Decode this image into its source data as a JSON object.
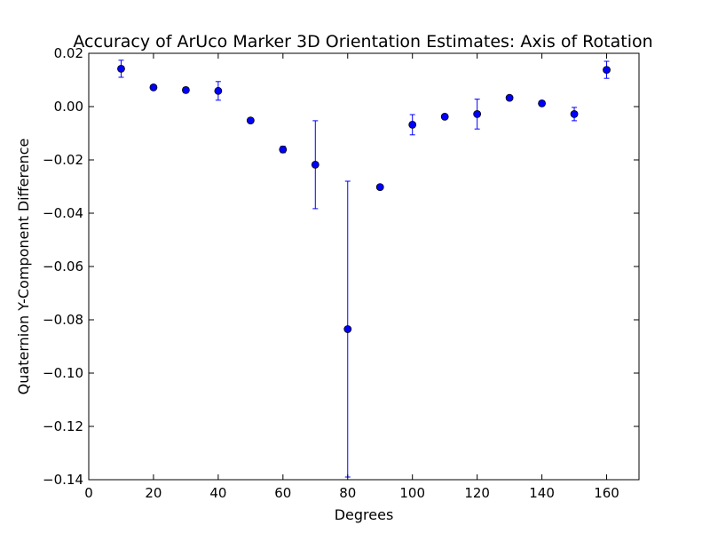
{
  "chart_data": {
    "type": "scatter",
    "title": "Accuracy of ArUco Marker 3D Orientation Estimates: Axis of Rotation",
    "xlabel": "Degrees",
    "ylabel": "Quaternion Y-Component Difference",
    "xlim": [
      0,
      170
    ],
    "ylim": [
      -0.14,
      0.02
    ],
    "xticks": [
      0,
      20,
      40,
      60,
      80,
      100,
      120,
      140,
      160
    ],
    "xtick_labels": [
      "0",
      "20",
      "40",
      "60",
      "80",
      "100",
      "120",
      "140",
      "160"
    ],
    "yticks": [
      0.02,
      0.0,
      -0.02,
      -0.04,
      -0.06,
      -0.08,
      -0.1,
      -0.12,
      -0.14
    ],
    "ytick_labels": [
      "0.02",
      "0.00",
      "−0.02",
      "−0.04",
      "−0.06",
      "−0.08",
      "−0.10",
      "−0.12",
      "−0.14"
    ],
    "grid": false,
    "marker_color": "#0000ff",
    "errorbar_color": "#0000ff",
    "points": [
      {
        "x": 10,
        "y": 0.0142,
        "yerr": 0.0032
      },
      {
        "x": 20,
        "y": 0.0072,
        "yerr": 0.0007
      },
      {
        "x": 30,
        "y": 0.0062,
        "yerr": 0.001
      },
      {
        "x": 40,
        "y": 0.0059,
        "yerr": 0.0035
      },
      {
        "x": 50,
        "y": -0.0052,
        "yerr": 0.0007
      },
      {
        "x": 60,
        "y": -0.0161,
        "yerr": 0.0012
      },
      {
        "x": 70,
        "y": -0.0218,
        "yerr": 0.0165
      },
      {
        "x": 80,
        "y": -0.0835,
        "yerr": 0.0555
      },
      {
        "x": 90,
        "y": -0.0302,
        "yerr": 0.0008
      },
      {
        "x": 100,
        "y": -0.0068,
        "yerr": 0.0038
      },
      {
        "x": 110,
        "y": -0.0038,
        "yerr": 0.0007
      },
      {
        "x": 120,
        "y": -0.0028,
        "yerr": 0.0056
      },
      {
        "x": 130,
        "y": 0.0033,
        "yerr": 0.0005
      },
      {
        "x": 140,
        "y": 0.0012,
        "yerr": 0.0005
      },
      {
        "x": 150,
        "y": -0.0028,
        "yerr": 0.0025
      },
      {
        "x": 160,
        "y": 0.0138,
        "yerr": 0.0032
      }
    ]
  }
}
